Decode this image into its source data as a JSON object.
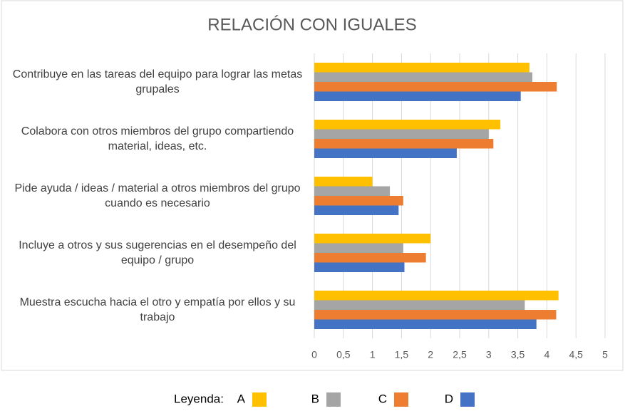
{
  "chart_data": {
    "type": "hbar",
    "title": "RELACIÓN CON IGUALES",
    "categories": [
      "Contribuye en las tareas del equipo para lograr las metas grupales",
      "Colabora con otros miembros del grupo compartiendo material, ideas, etc.",
      "Pide ayuda / ideas / material a otros miembros del grupo cuando es necesario",
      "Incluye a otros y sus sugerencias en el desempeño del equipo / grupo",
      "Muestra escucha hacia el otro y empatía por ellos y su trabajo"
    ],
    "series": [
      {
        "name": "A",
        "color": "#ffc000",
        "values": [
          3.7,
          3.2,
          1.0,
          2.0,
          4.2
        ]
      },
      {
        "name": "B",
        "color": "#a5a5a5",
        "values": [
          3.75,
          3.0,
          1.3,
          1.53,
          3.62
        ]
      },
      {
        "name": "C",
        "color": "#ed7d31",
        "values": [
          4.17,
          3.08,
          1.53,
          1.92,
          4.16
        ]
      },
      {
        "name": "D",
        "color": "#4472c4",
        "values": [
          3.55,
          2.45,
          1.45,
          1.55,
          3.82
        ]
      }
    ],
    "xlim": [
      0,
      5
    ],
    "xticks": [
      0,
      {
        "value": 0.5,
        "label": "0,5"
      },
      1,
      {
        "value": 1.5,
        "label": "1,5"
      },
      2,
      {
        "value": 2.5,
        "label": "2,5"
      },
      3,
      {
        "value": 3.5,
        "label": "3,5"
      },
      4,
      {
        "value": 4.5,
        "label": "4,5"
      },
      5
    ],
    "grid": true,
    "legend_title": "Leyenda:",
    "legend_position": "bottom"
  }
}
